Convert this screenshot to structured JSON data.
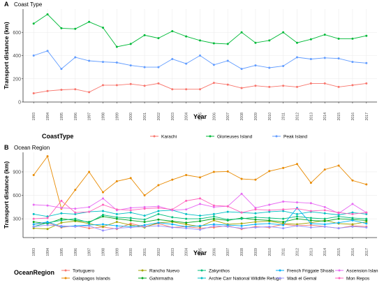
{
  "chart_data": [
    {
      "type": "line",
      "panel_letter": "A",
      "title": "Coast Type",
      "xlabel": "Year",
      "ylabel": "Transport distance (km)",
      "ylim": [
        0,
        800
      ],
      "yticks": [
        0,
        200,
        400,
        600
      ],
      "grid": true,
      "legend_title": "CoastType",
      "legend_position": "bottom",
      "x": [
        1993,
        1994,
        1995,
        1996,
        1997,
        1998,
        1999,
        2000,
        2001,
        2002,
        2003,
        2004,
        2005,
        2006,
        2007,
        2008,
        2009,
        2010,
        2011,
        2012,
        2013,
        2014,
        2015,
        2016,
        2017
      ],
      "series": [
        {
          "name": "Karachi",
          "color": "#F8766D",
          "values": [
            75,
            95,
            105,
            110,
            85,
            145,
            145,
            155,
            140,
            160,
            110,
            110,
            110,
            165,
            150,
            120,
            140,
            130,
            140,
            130,
            160,
            160,
            130,
            145,
            160
          ]
        },
        {
          "name": "Glorieuses Island",
          "color": "#00BA38",
          "values": [
            675,
            755,
            635,
            630,
            690,
            640,
            475,
            500,
            575,
            550,
            610,
            565,
            530,
            505,
            500,
            600,
            510,
            530,
            600,
            510,
            540,
            580,
            545,
            545,
            570
          ]
        },
        {
          "name": "Peak Island",
          "color": "#619CFF",
          "values": [
            400,
            440,
            285,
            385,
            355,
            345,
            340,
            315,
            300,
            300,
            370,
            330,
            400,
            320,
            355,
            285,
            315,
            295,
            310,
            385,
            370,
            380,
            375,
            345,
            335
          ]
        }
      ]
    },
    {
      "type": "line",
      "panel_letter": "B",
      "title": "Ocean Region",
      "xlabel": "Year",
      "ylabel": "Transport distance (km)",
      "ylim": [
        60,
        1150
      ],
      "yticks": [
        300,
        600,
        900
      ],
      "grid": true,
      "legend_title": "OceanRegion",
      "legend_position": "bottom",
      "x": [
        1993,
        1994,
        1995,
        1996,
        1997,
        1998,
        1999,
        2000,
        2001,
        2002,
        2003,
        2004,
        2005,
        2006,
        2007,
        2008,
        2009,
        2010,
        2011,
        2012,
        2013,
        2014,
        2015,
        2016,
        2017
      ],
      "series": [
        {
          "name": "Tortuguero",
          "color": "#F8766D",
          "values": [
            230,
            250,
            190,
            210,
            180,
            195,
            170,
            240,
            200,
            240,
            190,
            200,
            180,
            190,
            210,
            170,
            200,
            190,
            230,
            210,
            220,
            200,
            180,
            210,
            200
          ]
        },
        {
          "name": "Galapagos Islands",
          "color": "#E88A00",
          "values": [
            860,
            1100,
            430,
            670,
            900,
            640,
            780,
            820,
            600,
            730,
            800,
            860,
            830,
            900,
            905,
            810,
            800,
            910,
            950,
            1000,
            760,
            930,
            980,
            790,
            740
          ]
        },
        {
          "name": "Rancho Nuevo",
          "color": "#A3A500",
          "values": [
            180,
            170,
            250,
            270,
            240,
            200,
            260,
            220,
            190,
            250,
            260,
            230,
            200,
            280,
            230,
            240,
            260,
            270,
            240,
            230,
            250,
            280,
            240,
            230,
            260
          ]
        },
        {
          "name": "Gahirmatha",
          "color": "#00A61F",
          "values": [
            260,
            240,
            300,
            280,
            260,
            330,
            300,
            280,
            260,
            290,
            270,
            250,
            270,
            300,
            280,
            310,
            290,
            280,
            260,
            300,
            280,
            270,
            300,
            290,
            280
          ]
        },
        {
          "name": "Zakynthos",
          "color": "#00BF7D",
          "values": [
            200,
            250,
            280,
            300,
            250,
            350,
            320,
            310,
            290,
            360,
            320,
            300,
            300,
            330,
            290,
            300,
            320,
            310,
            300,
            330,
            310,
            300,
            330,
            310,
            300
          ]
        },
        {
          "name": "Archie Carr National Wildlife Refuge",
          "color": "#00BFC4",
          "values": [
            360,
            330,
            370,
            360,
            390,
            400,
            360,
            380,
            340,
            400,
            410,
            360,
            340,
            360,
            390,
            380,
            370,
            390,
            400,
            360,
            390,
            370,
            350,
            380,
            360
          ]
        },
        {
          "name": "French Friggate Shoals",
          "color": "#00B0F6",
          "values": [
            230,
            260,
            200,
            210,
            220,
            230,
            210,
            200,
            220,
            250,
            230,
            200,
            210,
            230,
            220,
            210,
            230,
            240,
            220,
            440,
            240,
            230,
            250,
            280,
            240
          ]
        },
        {
          "name": "Wadi el Gemal",
          "color": "#9590FF",
          "values": [
            200,
            220,
            210,
            200,
            210,
            150,
            180,
            190,
            200,
            210,
            190,
            180,
            160,
            210,
            200,
            180,
            190,
            200,
            180,
            210,
            190,
            200,
            180,
            200,
            190
          ]
        },
        {
          "name": "Ascension Islan",
          "color": "#E76BF3",
          "values": [
            480,
            470,
            440,
            430,
            450,
            560,
            410,
            440,
            450,
            460,
            410,
            420,
            490,
            450,
            460,
            620,
            440,
            480,
            520,
            510,
            500,
            450,
            370,
            490,
            380
          ]
        },
        {
          "name": "Mon Repos",
          "color": "#FF62BC",
          "values": [
            300,
            310,
            530,
            380,
            390,
            480,
            420,
            410,
            430,
            440,
            420,
            530,
            560,
            470,
            460,
            380,
            420,
            410,
            420,
            430,
            400,
            410,
            380,
            360,
            380
          ]
        }
      ]
    }
  ]
}
